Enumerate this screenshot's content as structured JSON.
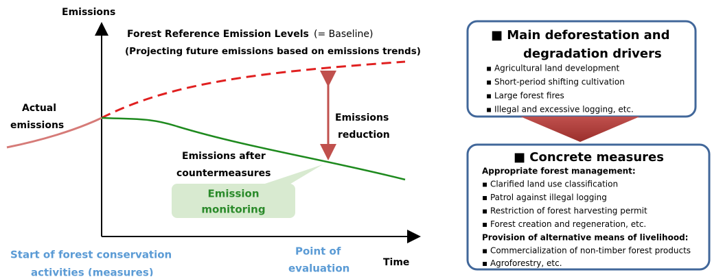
{
  "diagram": {
    "y_axis_label": "Emissions",
    "x_axis_label": "Time",
    "baseline_title": "Forest Reference Emission Levels",
    "baseline_note": "(= Baseline)",
    "baseline_subtitle": "(Projecting future emissions based on emissions trends)",
    "actual_emissions": [
      "Actual",
      "emissions"
    ],
    "reduction": [
      "Emissions",
      "reduction"
    ],
    "after_countermeasures": [
      "Emissions after",
      "countermeasures"
    ],
    "monitoring": [
      "Emission",
      "monitoring"
    ],
    "start_label": [
      "Start of forest conservation",
      "activities (measures)"
    ],
    "evaluation_label": [
      "Point of",
      "evaluation"
    ]
  },
  "drivers_box": {
    "title": [
      "■ Main deforestation and",
      "degradation drivers"
    ],
    "items": [
      "▪ Agricultural land development",
      "▪ Short-period shifting cultivation",
      "▪ Large forest fires",
      "▪ Illegal and excessive logging, etc."
    ]
  },
  "measures_box": {
    "title": "■ Concrete measures",
    "heading1": "Appropriate forest management:",
    "items1": [
      "▪ Clarified land use classification",
      "▪ Patrol against illegal logging",
      "▪ Restriction of forest harvesting permit",
      "▪ Forest creation and regeneration, etc."
    ],
    "heading2": "Provision of alternative means of livelihood:",
    "items2": [
      "▪ Commercialization of non-timber forest products",
      "▪ Agroforestry, etc."
    ]
  }
}
